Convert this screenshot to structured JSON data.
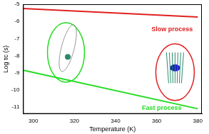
{
  "chart_data": {
    "type": "line",
    "x_label": "Temperature (K)",
    "y_label": "Log τc (s)",
    "xlim": [
      295,
      382
    ],
    "xticks": [
      300,
      320,
      340,
      360,
      380
    ],
    "ylim": [
      -11.4,
      -5
    ],
    "yticks": [
      -11,
      -10,
      -9,
      -8,
      -7,
      -6,
      -5
    ],
    "grid": false,
    "series": [
      {
        "name": "Slow process",
        "color": "#e02020",
        "x": [
          295,
          380
        ],
        "values": [
          -5.25,
          -5.75
        ]
      },
      {
        "name": "Fast process",
        "color": "#22dd22",
        "x": [
          295,
          380
        ],
        "values": [
          -8.85,
          -11.1
        ]
      }
    ],
    "annotations": [
      {
        "text": "Slow process",
        "x": 367.5,
        "y": -6.45,
        "color": "#e02020"
      },
      {
        "text": "Fast process",
        "x": 362.5,
        "y": -11.05,
        "color": "#22dd22"
      }
    ]
  }
}
